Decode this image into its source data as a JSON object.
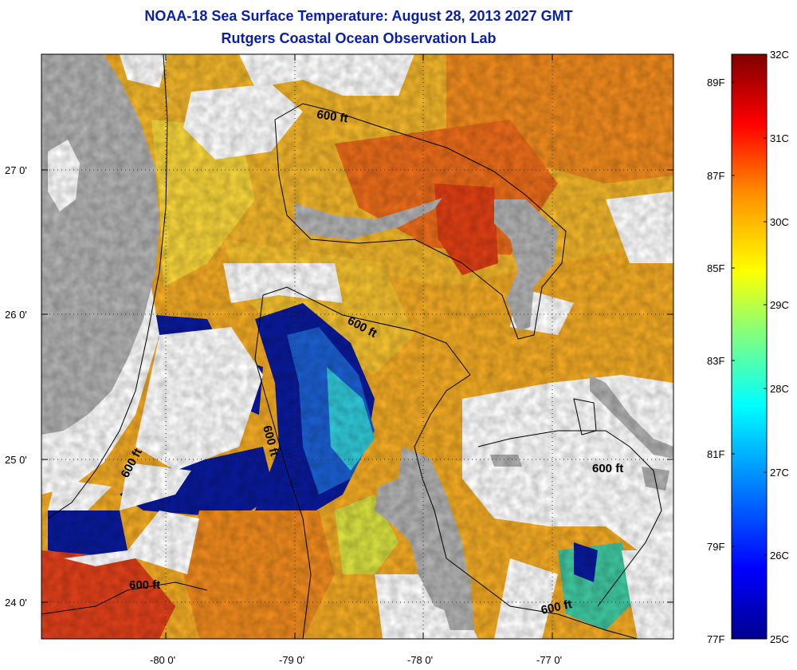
{
  "header": {
    "title": "NOAA-18 Sea Surface Temperature:  August 28, 2013 2027 GMT",
    "subtitle": "Rutgers Coastal Ocean Observation Lab"
  },
  "map": {
    "lat_labels": [
      "27 0'",
      "26 0'",
      "25 0'",
      "24 0'"
    ],
    "lon_labels": [
      "-80 0'",
      "-79 0'",
      "-78 0'",
      "-77 0'"
    ],
    "contour_labels": [
      "600 ft",
      "600 ft",
      "600 ft",
      "600 ft",
      "600 ft",
      "600 ft"
    ],
    "colors": {
      "land": "#b2b2b2",
      "cloud": "#ffffff",
      "cold": "#0a1a9a",
      "warm": "#f0a020",
      "hot": "#e04818"
    }
  },
  "colorbar": {
    "celsius_labels": [
      "32C",
      "31C",
      "30C",
      "29C",
      "28C",
      "27C",
      "26C",
      "25C"
    ],
    "fahrenheit_labels": [
      "89F",
      "87F",
      "85F",
      "83F",
      "81F",
      "79F",
      "77F"
    ],
    "range_c": [
      25,
      32
    ]
  }
}
